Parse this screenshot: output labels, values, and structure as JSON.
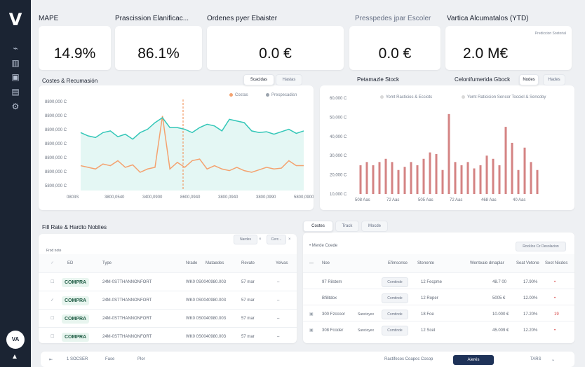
{
  "sidebar": {
    "logo": "V",
    "icons": [
      "chart-line-icon",
      "chart-bars-icon",
      "truck-icon",
      "calendar-icon",
      "settings-icon"
    ],
    "avatar": "VA"
  },
  "kpis": [
    {
      "label": "MAPE",
      "value": "14.9%"
    },
    {
      "label": "Prascission Elanificac...",
      "value": "86.1%"
    },
    {
      "label": "Ordenes pyer Ebaister",
      "value": "0.0 €"
    },
    {
      "label": "Presspedes jpar Escoler",
      "value": "0.0 €"
    },
    {
      "label": "Vartica Alcumatalos (YTD)",
      "value": "2.0 M€",
      "note": "Prediccion Sostorial"
    }
  ],
  "costs_chart": {
    "title": "Costes & Recumasión",
    "tabs": [
      "Scacidas",
      "Hastas"
    ],
    "legend": [
      "Costas",
      "Prespecadisn"
    ],
    "colors": {
      "costs": "#f4a26f",
      "forecast": "#33c7b8"
    },
    "chart_data": {
      "type": "line",
      "y_ticks": [
        "8800,000 C",
        "8800,000 C",
        "8800,000 C",
        "8800,000 C",
        "8800,000 C",
        "8800,000 C",
        "5800,000 C"
      ],
      "x_ticks": [
        "0803S",
        "3800,0540",
        "3400,0900",
        "8600,0940",
        "3800,0940",
        "3800,0990",
        "5800,0900"
      ],
      "x": [
        0,
        1,
        2,
        3,
        4,
        5,
        6,
        7,
        8,
        9,
        10,
        11,
        12,
        13,
        14,
        15,
        16,
        17,
        18,
        19,
        20,
        21,
        22,
        23,
        24,
        25,
        26,
        27,
        28,
        29,
        30
      ],
      "series": [
        {
          "name": "Costas",
          "values": [
            240,
            238,
            236,
            242,
            240,
            246,
            238,
            241,
            232,
            236,
            238,
            300,
            236,
            244,
            238,
            246,
            248,
            236,
            240,
            236,
            234,
            238,
            234,
            232,
            235,
            238,
            236,
            237,
            246,
            240,
            240
          ]
        },
        {
          "name": "Prespecadisn",
          "values": [
            280,
            276,
            274,
            280,
            282,
            275,
            278,
            272,
            280,
            284,
            292,
            298,
            286,
            286,
            284,
            280,
            286,
            290,
            288,
            282,
            296,
            294,
            292,
            282,
            280,
            281,
            278,
            281,
            284,
            279,
            282
          ]
        }
      ]
    }
  },
  "stock_chart": {
    "title": "Petamazle Stock",
    "legend": [
      "Yomt Racticios & Ecciots",
      "Yomt Raticision Sencor Tocciel & Sencoby"
    ],
    "tabs": [
      "Nodes",
      "Hades"
    ],
    "secondary_title": "Celonifumerida Gbock",
    "color": "#d48383",
    "chart_data": {
      "type": "bar",
      "y_ticks": [
        "60,000 C",
        "50,000 C",
        "40,000 C",
        "30,000 C",
        "20,000 C",
        "10,000 C"
      ],
      "x_ticks": [
        "508 Aas",
        "72 Aas",
        "505 Aas",
        "72 Aas",
        "468 Aas",
        "40 Aas"
      ],
      "values": [
        18,
        20,
        18,
        20,
        22,
        20,
        15,
        17,
        20,
        18,
        22,
        26,
        25,
        15,
        50,
        20,
        18,
        20,
        16,
        18,
        24,
        22,
        18,
        42,
        32,
        15,
        29,
        20,
        15
      ],
      "ylim": [
        0,
        60
      ]
    }
  },
  "orders": {
    "title": "Fill Rate & Hardto Noblies",
    "filter_pill": "Nardes",
    "filter_pill_2": "Cerc...",
    "list_hint": "Frod note",
    "headers": [
      "ED",
      "Type",
      "Nrade",
      "Mataedes",
      "Revate",
      "Yelvas"
    ],
    "rows": [
      {
        "status": "COMPRA",
        "id": "24M-0S7THANNONFORT",
        "code": "WK0 0S0040980.003",
        "date": "57 mar",
        "value": "–"
      },
      {
        "status": "COMPRA",
        "id": "24M-0S7THANNONFORT",
        "code": "WK0 0S0040980.003",
        "date": "57 mar",
        "value": "–"
      },
      {
        "status": "COMPRA",
        "id": "24M-0S7THANNONFORT",
        "code": "WK0 0S0040980.003",
        "date": "57 mar",
        "value": "–"
      },
      {
        "status": "COMPRA",
        "id": "24M-0S7THANNONFORT",
        "code": "WK0 0S0040980.003",
        "date": "57 mar",
        "value": "–"
      }
    ]
  },
  "costs_table": {
    "tabs": [
      "Costes",
      "Track",
      "Mocde"
    ],
    "search_label": "Merde Coede",
    "filter_btn": "Rocklos Cz Desolacion",
    "headers": [
      "Noe",
      "Efimsonse",
      "Stenente",
      "Wenteale dmaplar",
      "Seat Vetone",
      "Seot Nicdes"
    ],
    "rows": [
      {
        "name": "97 Rilstem",
        "tag": "Comtinde",
        "qty": "12 Fecpme",
        "amount": "48.7 00",
        "pct": "17.90%",
        "flag": "•"
      },
      {
        "name": "Bfilitdox",
        "tag": "Comtinde",
        "qty": "12 Roper",
        "amount": "5005 €",
        "pct": "12.00%",
        "flag": "•"
      },
      {
        "name": "300 Fzccoor",
        "sub": "Sancioyex",
        "tag": "Comtinde",
        "qty": "18 Foe",
        "amount": "10.000 €",
        "pct": "17.20%",
        "flag": "19"
      },
      {
        "name": "308 Fcoder",
        "sub": "Sancioyex",
        "tag": "Comtinde",
        "qty": "12 Scet",
        "amount": "45.009 €",
        "pct": "12.20%",
        "flag": "•"
      }
    ]
  },
  "footer": {
    "pages": "1 SOCSER",
    "size_a": "Fase",
    "size_b": "Plor",
    "status": "Ractifecos Coapoc Cosop",
    "primary": "Aierés",
    "user": "TARS"
  }
}
